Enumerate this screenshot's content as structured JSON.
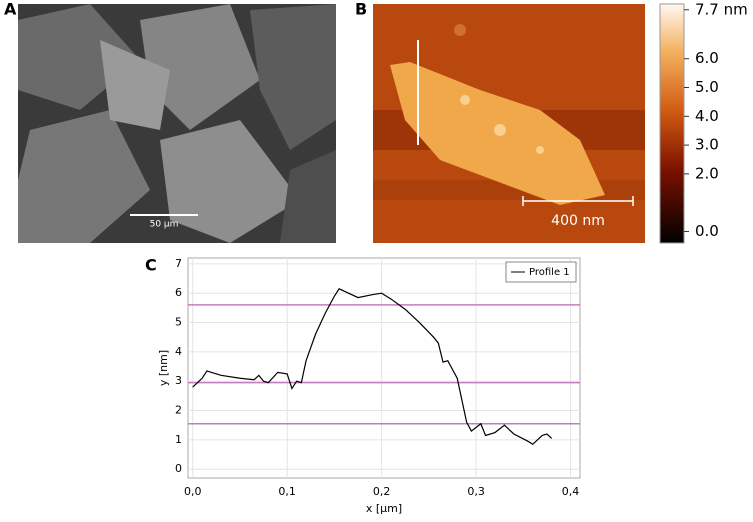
{
  "panels": {
    "a": {
      "label": "A",
      "scale_bar": "50 µm"
    },
    "b": {
      "label": "B",
      "scale_bar": "400 nm"
    }
  },
  "colorbar": {
    "clim": [
      -0.4,
      7.9
    ],
    "ticks": [
      {
        "value": 7.7,
        "label": "7.7 nm"
      },
      {
        "value": 6,
        "label": "6.0"
      },
      {
        "value": 5,
        "label": "5.0"
      },
      {
        "value": 4,
        "label": "4.0"
      },
      {
        "value": 3,
        "label": "3.0"
      },
      {
        "value": 2,
        "label": "2.0"
      },
      {
        "value": 0,
        "label": "0.0"
      }
    ]
  },
  "chart_data": {
    "type": "line",
    "panel_label": "C",
    "x_label": "x [µm]",
    "y_label": "y [nm]",
    "x": [
      0.0,
      0.01,
      0.015,
      0.02,
      0.03,
      0.05,
      0.065,
      0.07,
      0.075,
      0.08,
      0.09,
      0.1,
      0.105,
      0.11,
      0.115,
      0.12,
      0.13,
      0.14,
      0.15,
      0.155,
      0.165,
      0.175,
      0.19,
      0.2,
      0.21,
      0.225,
      0.24,
      0.255,
      0.26,
      0.265,
      0.27,
      0.28,
      0.29,
      0.295,
      0.305,
      0.31,
      0.32,
      0.33,
      0.34,
      0.355,
      0.36,
      0.37,
      0.375,
      0.38
    ],
    "series": [
      {
        "name": "Profile 1",
        "color": "#000000",
        "values": [
          2.8,
          3.1,
          3.35,
          3.3,
          3.2,
          3.1,
          3.05,
          3.2,
          3.0,
          2.95,
          3.3,
          3.25,
          2.75,
          3.0,
          2.95,
          3.7,
          4.6,
          5.3,
          5.9,
          6.15,
          6.0,
          5.85,
          5.95,
          6.0,
          5.8,
          5.45,
          5.0,
          4.5,
          4.3,
          3.65,
          3.7,
          3.1,
          1.6,
          1.3,
          1.55,
          1.15,
          1.25,
          1.5,
          1.2,
          0.95,
          0.85,
          1.15,
          1.2,
          1.05
        ]
      }
    ],
    "reference_lines": [
      5.6,
      2.95,
      1.55
    ],
    "reference_color": "#c77bbf",
    "xlim": [
      -0.005,
      0.41
    ],
    "ylim": [
      -0.3,
      7.2
    ],
    "xticks": [
      {
        "value": 0,
        "label": "0,0"
      },
      {
        "value": 0.1,
        "label": "0,1"
      },
      {
        "value": 0.2,
        "label": "0,2"
      },
      {
        "value": 0.3,
        "label": "0,3"
      },
      {
        "value": 0.4,
        "label": "0,4"
      }
    ],
    "yticks": [
      0,
      1,
      2,
      3,
      4,
      5,
      6,
      7
    ],
    "grid": true,
    "legend": "top-right"
  }
}
